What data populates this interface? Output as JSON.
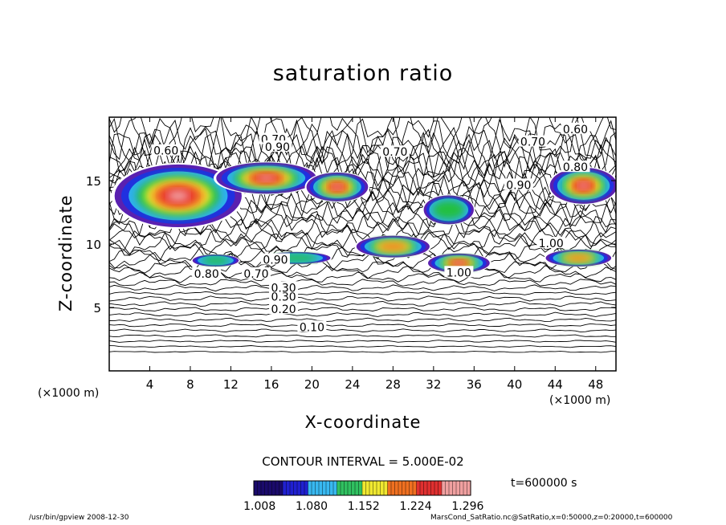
{
  "chart_data": {
    "type": "heatmap",
    "title": "saturation ratio",
    "xlabel": "X-coordinate",
    "ylabel": "Z-coordinate",
    "x_unit_label": "(×1000 m)",
    "x_unit_label_right": "(×1000 m)",
    "xlim": [
      0,
      50
    ],
    "ylim": [
      0,
      20
    ],
    "xticks": [
      "4",
      "8",
      "12",
      "16",
      "20",
      "24",
      "28",
      "32",
      "36",
      "40",
      "44",
      "48"
    ],
    "xtick_values": [
      4,
      8,
      12,
      16,
      20,
      24,
      28,
      32,
      36,
      40,
      44,
      48
    ],
    "yticks": [
      "5",
      "10",
      "15"
    ],
    "ytick_values": [
      5,
      10,
      15
    ],
    "contour_interval_text": "CONTOUR INTERVAL = 5.000E-02",
    "colorbar": {
      "tick_labels": [
        "1.008",
        "1.080",
        "1.152",
        "1.224",
        "1.296"
      ],
      "tick_values": [
        1.008,
        1.08,
        1.152,
        1.224,
        1.296
      ],
      "range": [
        1.0,
        1.3
      ],
      "colormap": [
        "#1a0a6b",
        "#2020d0",
        "#38b8f0",
        "#30c060",
        "#f0e830",
        "#f07020",
        "#e03030",
        "#f0a0a0"
      ]
    },
    "contour_labels": [
      {
        "text": "0.10",
        "x": 20.0,
        "z": 3.4
      },
      {
        "text": "0.20",
        "x": 17.2,
        "z": 4.8
      },
      {
        "text": "0.30",
        "x": 17.2,
        "z": 5.8
      },
      {
        "text": "0.30",
        "x": 17.2,
        "z": 6.5
      },
      {
        "text": "0.60",
        "x": 5.6,
        "z": 17.3
      },
      {
        "text": "0.70",
        "x": 16.2,
        "z": 18.2
      },
      {
        "text": "0.90",
        "x": 16.6,
        "z": 17.6
      },
      {
        "text": "0.70",
        "x": 28.2,
        "z": 17.2
      },
      {
        "text": "0.70",
        "x": 41.8,
        "z": 18.0
      },
      {
        "text": "0.60",
        "x": 46.0,
        "z": 19.0
      },
      {
        "text": "0.90",
        "x": 40.4,
        "z": 14.6
      },
      {
        "text": "0.80",
        "x": 46.0,
        "z": 16.0
      },
      {
        "text": "1.00",
        "x": 43.6,
        "z": 10.0
      },
      {
        "text": "1.00",
        "x": 34.5,
        "z": 7.7
      },
      {
        "text": "0.80",
        "x": 9.6,
        "z": 7.6
      },
      {
        "text": "0.70",
        "x": 14.5,
        "z": 7.6
      },
      {
        "text": "0.90",
        "x": 16.4,
        "z": 8.7
      }
    ],
    "time_label": "t=600000 s",
    "supersaturated_regions": [
      {
        "cx": 6.8,
        "cz": 13.8,
        "rx": 6.6,
        "rz": 2.6,
        "peak": 1.31
      },
      {
        "cx": 15.5,
        "cz": 15.2,
        "rx": 5.2,
        "rz": 1.3,
        "peak": 1.25
      },
      {
        "cx": 22.5,
        "cz": 14.5,
        "rx": 3.2,
        "rz": 1.2,
        "peak": 1.28
      },
      {
        "cx": 28.0,
        "cz": 9.8,
        "rx": 3.8,
        "rz": 0.9,
        "peak": 1.2
      },
      {
        "cx": 34.5,
        "cz": 8.5,
        "rx": 3.2,
        "rz": 0.8,
        "peak": 1.3
      },
      {
        "cx": 10.5,
        "cz": 8.7,
        "rx": 2.4,
        "rz": 0.5,
        "peak": 1.14
      },
      {
        "cx": 18.5,
        "cz": 8.9,
        "rx": 3.5,
        "rz": 0.5,
        "peak": 1.12
      },
      {
        "cx": 46.8,
        "cz": 14.6,
        "rx": 3.5,
        "rz": 1.5,
        "peak": 1.28
      },
      {
        "cx": 46.3,
        "cz": 8.9,
        "rx": 3.4,
        "rz": 0.7,
        "peak": 1.2
      },
      {
        "cx": 33.5,
        "cz": 12.7,
        "rx": 2.6,
        "rz": 1.2,
        "peak": 1.12
      }
    ]
  },
  "footer": {
    "left": "/usr/bin/gpview   2008-12-30",
    "right": "MarsCond_SatRatio.nc@SatRatio,x=0:50000,z=0:20000,t=600000"
  }
}
